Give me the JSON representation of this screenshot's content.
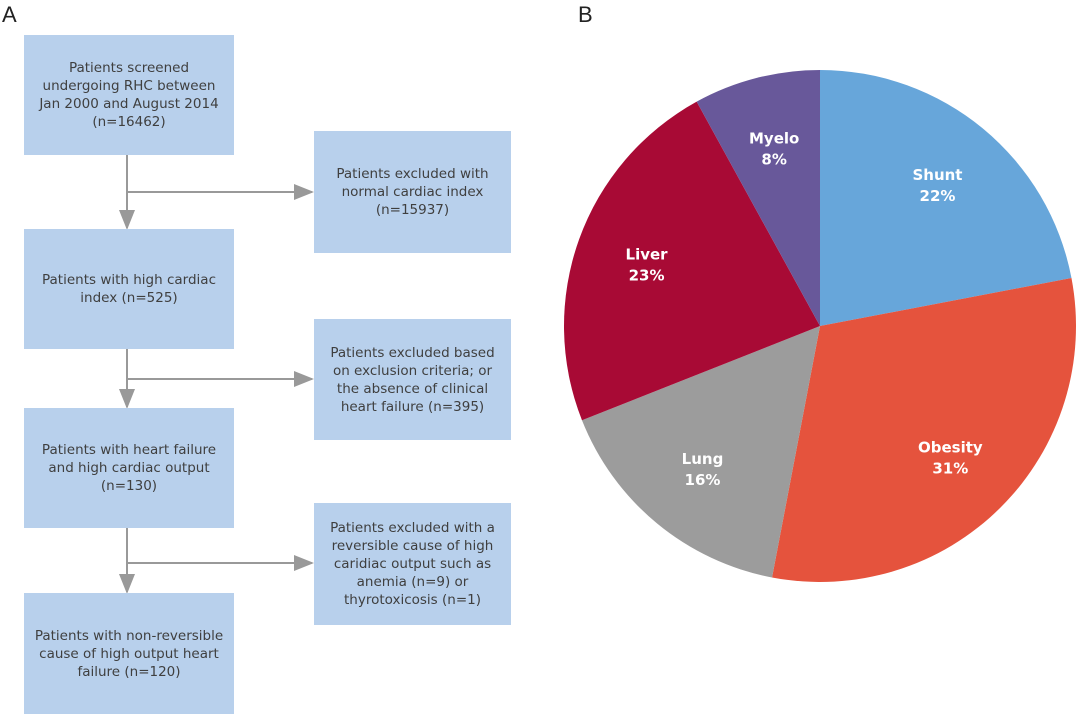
{
  "panels": {
    "a": "A",
    "b": "B"
  },
  "flowchart": {
    "main_boxes": [
      "Patients screened undergoing RHC between Jan 2000 and August 2014 (n=16462)",
      "Patients with high cardiac index (n=525)",
      "Patients with heart failure and high cardiac output (n=130)",
      "Patients with non-reversible cause of high output heart failure (n=120)"
    ],
    "exclusion_boxes": [
      "Patients excluded with normal cardiac index (n=15937)",
      "Patients excluded based on exclusion criteria; or the absence of clinical heart failure (n=395)",
      "Patients excluded with a reversible cause of high caridiac output such as anemia (n=9) or thyrotoxicosis (n=1)"
    ]
  },
  "chart_data": {
    "type": "pie",
    "title": "",
    "start": "top, clockwise",
    "slices": [
      {
        "label": "Shunt",
        "value": 22,
        "text": "22%",
        "color": "#67a6da"
      },
      {
        "label": "Obesity",
        "value": 31,
        "text": "31%",
        "color": "#e5533d"
      },
      {
        "label": "Lung",
        "value": 16,
        "text": "16%",
        "color": "#9c9c9c"
      },
      {
        "label": "Liver",
        "value": 23,
        "text": "23%",
        "color": "#a80a35"
      },
      {
        "label": "Myelo",
        "value": 8,
        "text": "8%",
        "color": "#68589a"
      }
    ]
  }
}
